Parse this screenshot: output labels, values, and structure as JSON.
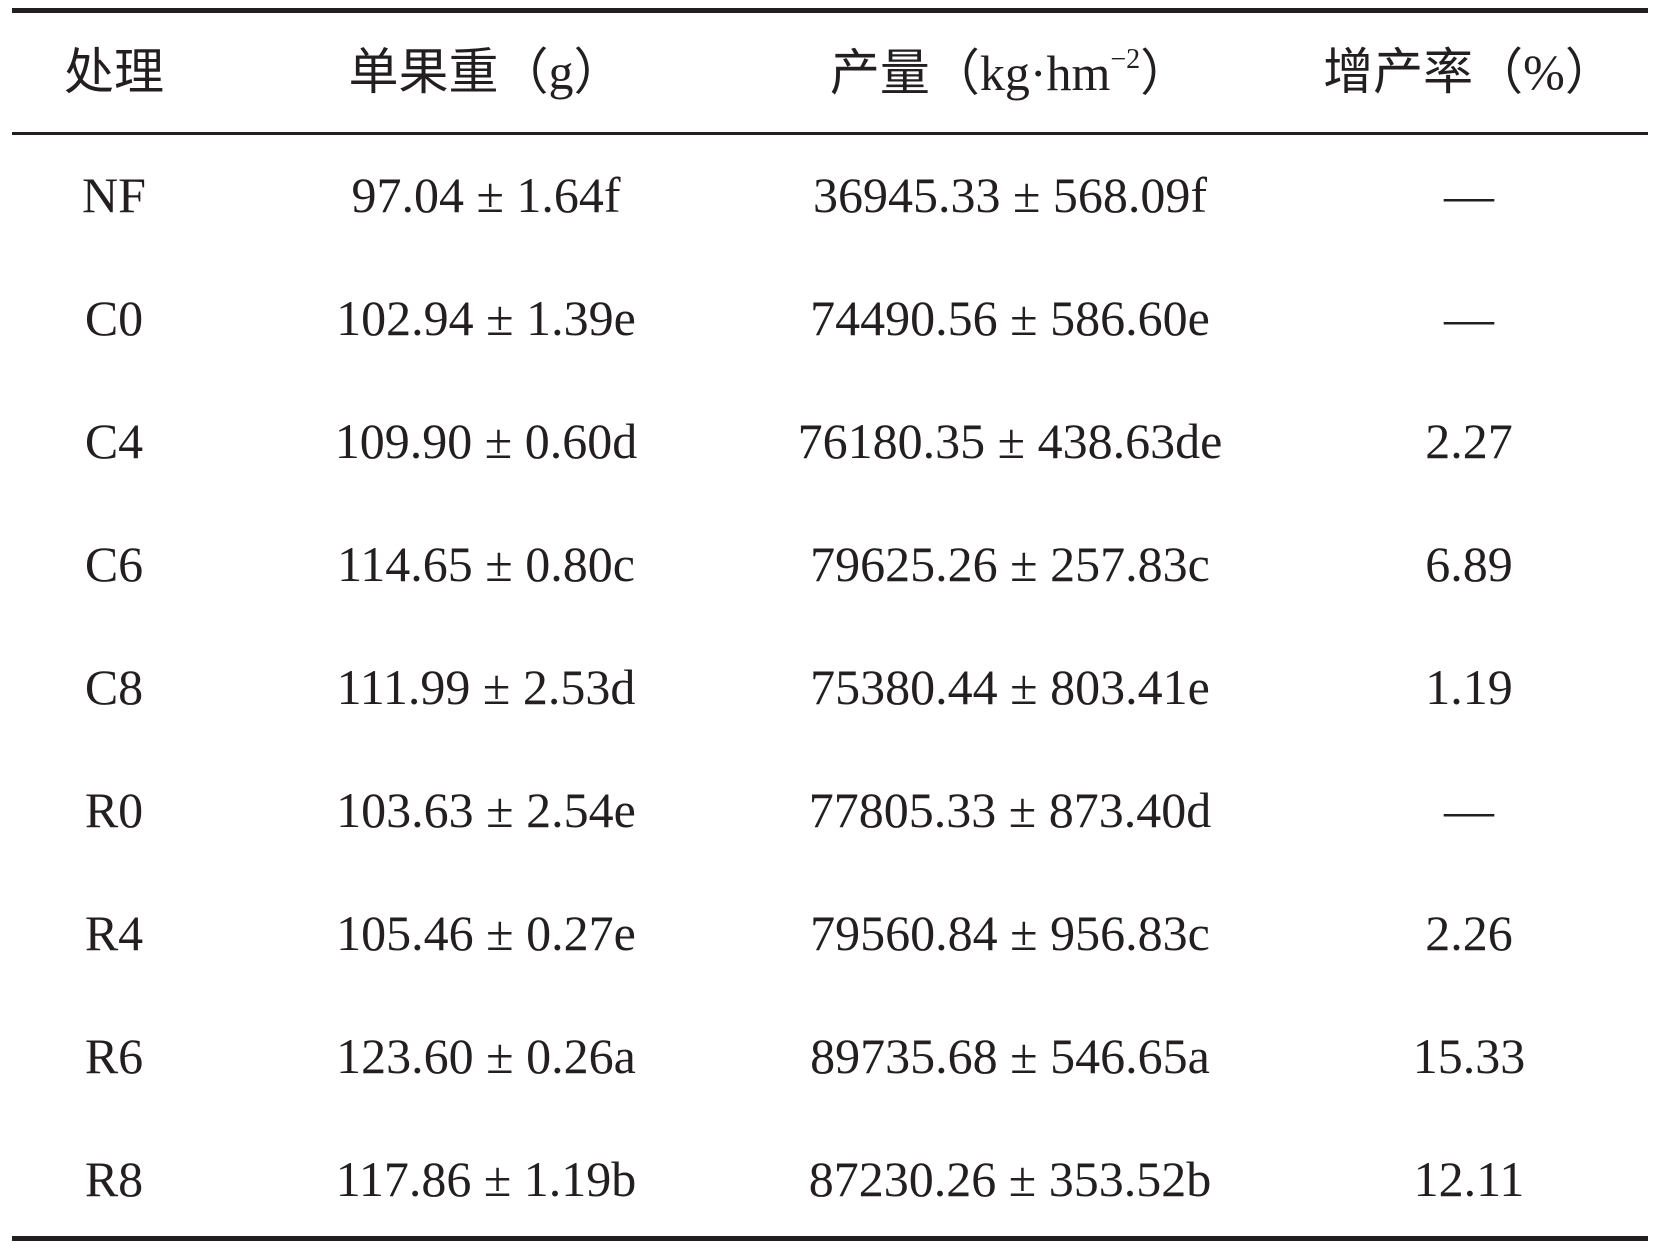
{
  "table": {
    "header": [
      "处理",
      "单果重（g）",
      {
        "text": "产量（kg·hm",
        "sup": "−2",
        "end": "）"
      },
      "增产率（%）"
    ],
    "rows": [
      [
        "NF",
        "97.04 ± 1.64f",
        "36945.33 ± 568.09f",
        "—"
      ],
      [
        "C0",
        "102.94 ± 1.39e",
        "74490.56 ± 586.60e",
        "—"
      ],
      [
        "C4",
        "109.90 ± 0.60d",
        "76180.35 ± 438.63de",
        "2.27"
      ],
      [
        "C6",
        "114.65 ± 0.80c",
        "79625.26 ± 257.83c",
        "6.89"
      ],
      [
        "C8",
        "111.99 ± 2.53d",
        "75380.44 ± 803.41e",
        "1.19"
      ],
      [
        "R0",
        "103.63 ± 2.54e",
        "77805.33 ± 873.40d",
        "—"
      ],
      [
        "R4",
        "105.46 ± 0.27e",
        "79560.84 ± 956.83c",
        "2.26"
      ],
      [
        "R6",
        "123.60 ± 0.26a",
        "89735.68 ± 546.65a",
        "15.33"
      ],
      [
        "R8",
        "117.86 ± 1.19b",
        "87230.26 ± 353.52b",
        "12.11"
      ]
    ]
  }
}
